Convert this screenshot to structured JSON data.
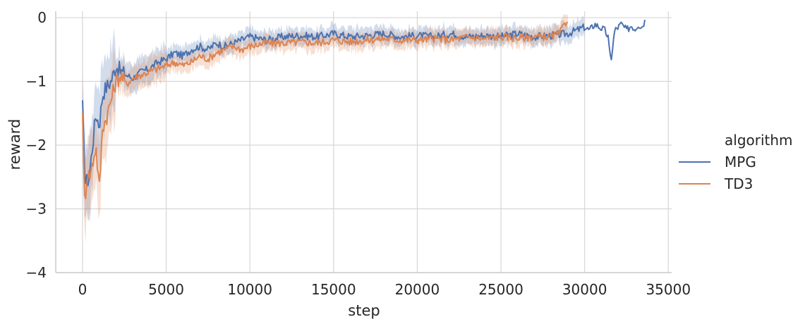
{
  "chart_data": {
    "type": "line",
    "xlabel": "step",
    "ylabel": "reward",
    "xlim": [
      -1600,
      35200
    ],
    "ylim": [
      -4,
      0.1
    ],
    "xticks": [
      0,
      5000,
      10000,
      15000,
      20000,
      25000,
      30000,
      35000
    ],
    "xtick_labels": [
      "0",
      "5000",
      "10000",
      "15000",
      "20000",
      "25000",
      "30000",
      "35000"
    ],
    "yticks": [
      0,
      -1,
      -2,
      -3,
      -4
    ],
    "ytick_labels": [
      "0",
      "−1",
      "−2",
      "−3",
      "−4"
    ],
    "grid": true,
    "legend": {
      "title": "algorithm",
      "placement": "right-outside"
    },
    "series": [
      {
        "name": "MPG",
        "color": "#4c72b0",
        "band": true,
        "x": [
          0,
          100,
          200,
          300,
          400,
          600,
          800,
          1000,
          1200,
          1400,
          1700,
          2000,
          2300,
          2600,
          3000,
          3500,
          4000,
          4500,
          5000,
          5500,
          6000,
          6500,
          7000,
          7500,
          8000,
          8500,
          9000,
          9500,
          10000,
          11000,
          12000,
          13000,
          14000,
          15000,
          16000,
          17000,
          18000,
          19000,
          20000,
          21000,
          22000,
          23000,
          24000,
          25000,
          26000,
          27000,
          28000,
          29000,
          29500,
          30000,
          30300,
          30600,
          30900,
          31200,
          31400,
          31500,
          31600,
          31800,
          32000,
          32200,
          32500,
          32800,
          33000,
          33200,
          33400,
          33600
        ],
        "y": [
          -1.4,
          -2.2,
          -2.6,
          -2.55,
          -2.5,
          -2.0,
          -1.5,
          -1.7,
          -1.2,
          -1.1,
          -1.0,
          -0.75,
          -0.85,
          -0.9,
          -0.95,
          -0.85,
          -0.8,
          -0.7,
          -0.65,
          -0.55,
          -0.6,
          -0.5,
          -0.45,
          -0.5,
          -0.4,
          -0.45,
          -0.4,
          -0.35,
          -0.3,
          -0.35,
          -0.3,
          -0.28,
          -0.3,
          -0.25,
          -0.3,
          -0.28,
          -0.25,
          -0.3,
          -0.28,
          -0.3,
          -0.25,
          -0.3,
          -0.28,
          -0.3,
          -0.25,
          -0.3,
          -0.28,
          -0.25,
          -0.2,
          -0.15,
          -0.2,
          -0.1,
          -0.15,
          -0.2,
          -0.3,
          -0.6,
          -0.62,
          -0.2,
          -0.15,
          -0.1,
          -0.2,
          -0.12,
          -0.18,
          -0.1,
          -0.15,
          -0.05
        ]
      },
      {
        "name": "TD3",
        "color": "#dd8452",
        "band": true,
        "x": [
          0,
          100,
          200,
          300,
          400,
          600,
          800,
          1000,
          1200,
          1400,
          1700,
          2000,
          2300,
          2600,
          3000,
          3500,
          4000,
          4500,
          5000,
          5500,
          6000,
          6500,
          7000,
          7500,
          8000,
          8500,
          9000,
          9500,
          10000,
          11000,
          12000,
          13000,
          14000,
          15000,
          16000,
          17000,
          18000,
          19000,
          20000,
          21000,
          22000,
          23000,
          24000,
          25000,
          26000,
          27000,
          28000,
          28500,
          29000
        ],
        "y": [
          -1.4,
          -2.9,
          -2.7,
          -2.4,
          -2.5,
          -2.3,
          -2.0,
          -2.7,
          -1.7,
          -1.6,
          -1.3,
          -1.0,
          -0.9,
          -1.05,
          -0.95,
          -0.9,
          -0.85,
          -0.8,
          -0.75,
          -0.7,
          -0.75,
          -0.7,
          -0.6,
          -0.65,
          -0.55,
          -0.5,
          -0.45,
          -0.5,
          -0.45,
          -0.4,
          -0.4,
          -0.38,
          -0.4,
          -0.35,
          -0.38,
          -0.35,
          -0.33,
          -0.35,
          -0.35,
          -0.33,
          -0.35,
          -0.3,
          -0.33,
          -0.3,
          -0.32,
          -0.3,
          -0.3,
          -0.25,
          -0.02
        ]
      }
    ]
  }
}
